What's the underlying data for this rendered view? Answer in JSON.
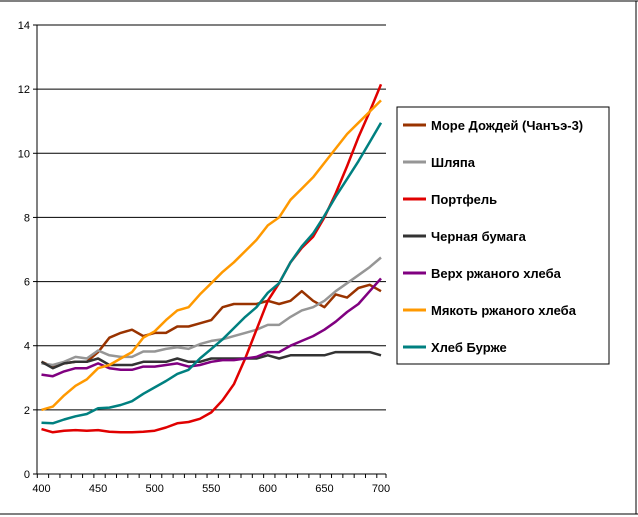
{
  "chart_data": {
    "type": "line",
    "title": "",
    "xlabel": "",
    "ylabel": "",
    "x": [
      400,
      410,
      420,
      430,
      440,
      450,
      460,
      470,
      480,
      490,
      500,
      510,
      520,
      530,
      540,
      550,
      560,
      570,
      580,
      590,
      600,
      610,
      620,
      630,
      640,
      650,
      660,
      670,
      680,
      690,
      700
    ],
    "x_ticks": [
      400,
      450,
      500,
      550,
      600,
      650,
      700
    ],
    "ylim": [
      0,
      14
    ],
    "y_ticks": [
      0,
      2,
      4,
      6,
      8,
      10,
      12,
      14
    ],
    "grid": true,
    "legend_position": "right",
    "series": [
      {
        "name": "Море Дождей (Чанъэ-3)",
        "color": "#993300",
        "values": [
          3.5,
          3.35,
          3.45,
          3.5,
          3.5,
          3.8,
          4.25,
          4.4,
          4.5,
          4.3,
          4.4,
          4.4,
          4.6,
          4.6,
          4.7,
          4.8,
          5.2,
          5.3,
          5.3,
          5.3,
          5.4,
          5.3,
          5.4,
          5.7,
          5.4,
          5.2,
          5.6,
          5.5,
          5.8,
          5.9,
          5.7
        ]
      },
      {
        "name": "Шляпа",
        "color": "#969696",
        "values": [
          3.45,
          3.4,
          3.5,
          3.65,
          3.6,
          3.85,
          3.7,
          3.65,
          3.65,
          3.82,
          3.82,
          3.9,
          3.95,
          3.9,
          4.05,
          4.15,
          4.2,
          4.3,
          4.4,
          4.5,
          4.65,
          4.65,
          4.9,
          5.1,
          5.2,
          5.4,
          5.7,
          5.95,
          6.2,
          6.45,
          6.75
        ]
      },
      {
        "name": "Портфель",
        "color": "#e00000",
        "values": [
          1.4,
          1.3,
          1.35,
          1.37,
          1.35,
          1.37,
          1.32,
          1.3,
          1.3,
          1.32,
          1.35,
          1.45,
          1.58,
          1.62,
          1.72,
          1.92,
          2.3,
          2.8,
          3.6,
          4.5,
          5.4,
          5.95,
          6.6,
          7.05,
          7.4,
          8.0,
          8.75,
          9.6,
          10.5,
          11.3,
          12.15
        ]
      },
      {
        "name": "Черная бумага",
        "color": "#333333",
        "values": [
          3.5,
          3.3,
          3.45,
          3.5,
          3.5,
          3.6,
          3.4,
          3.4,
          3.4,
          3.5,
          3.5,
          3.5,
          3.6,
          3.5,
          3.5,
          3.6,
          3.6,
          3.6,
          3.6,
          3.6,
          3.7,
          3.6,
          3.7,
          3.7,
          3.7,
          3.7,
          3.8,
          3.8,
          3.8,
          3.8,
          3.7
        ]
      },
      {
        "name": "Верх ржаного хлеба",
        "color": "#800080",
        "values": [
          3.1,
          3.05,
          3.2,
          3.3,
          3.3,
          3.45,
          3.3,
          3.25,
          3.25,
          3.35,
          3.35,
          3.4,
          3.45,
          3.35,
          3.4,
          3.5,
          3.55,
          3.55,
          3.6,
          3.65,
          3.8,
          3.8,
          4.0,
          4.15,
          4.3,
          4.5,
          4.75,
          5.05,
          5.3,
          5.7,
          6.1
        ]
      },
      {
        "name": "Мякоть ржаного хлеба",
        "color": "#ff9900",
        "values": [
          2.0,
          2.1,
          2.45,
          2.75,
          2.95,
          3.3,
          3.4,
          3.6,
          3.8,
          4.25,
          4.45,
          4.8,
          5.1,
          5.2,
          5.6,
          5.95,
          6.3,
          6.6,
          6.95,
          7.3,
          7.75,
          8.0,
          8.55,
          8.9,
          9.25,
          9.7,
          10.15,
          10.6,
          10.95,
          11.3,
          11.65
        ]
      },
      {
        "name": "Хлеб Бурже",
        "color": "#008080",
        "values": [
          1.6,
          1.58,
          1.7,
          1.8,
          1.87,
          2.05,
          2.07,
          2.15,
          2.27,
          2.5,
          2.7,
          2.9,
          3.12,
          3.25,
          3.6,
          3.9,
          4.2,
          4.55,
          4.9,
          5.2,
          5.65,
          5.95,
          6.6,
          7.1,
          7.5,
          8.05,
          8.65,
          9.2,
          9.75,
          10.35,
          10.95
        ]
      }
    ]
  }
}
